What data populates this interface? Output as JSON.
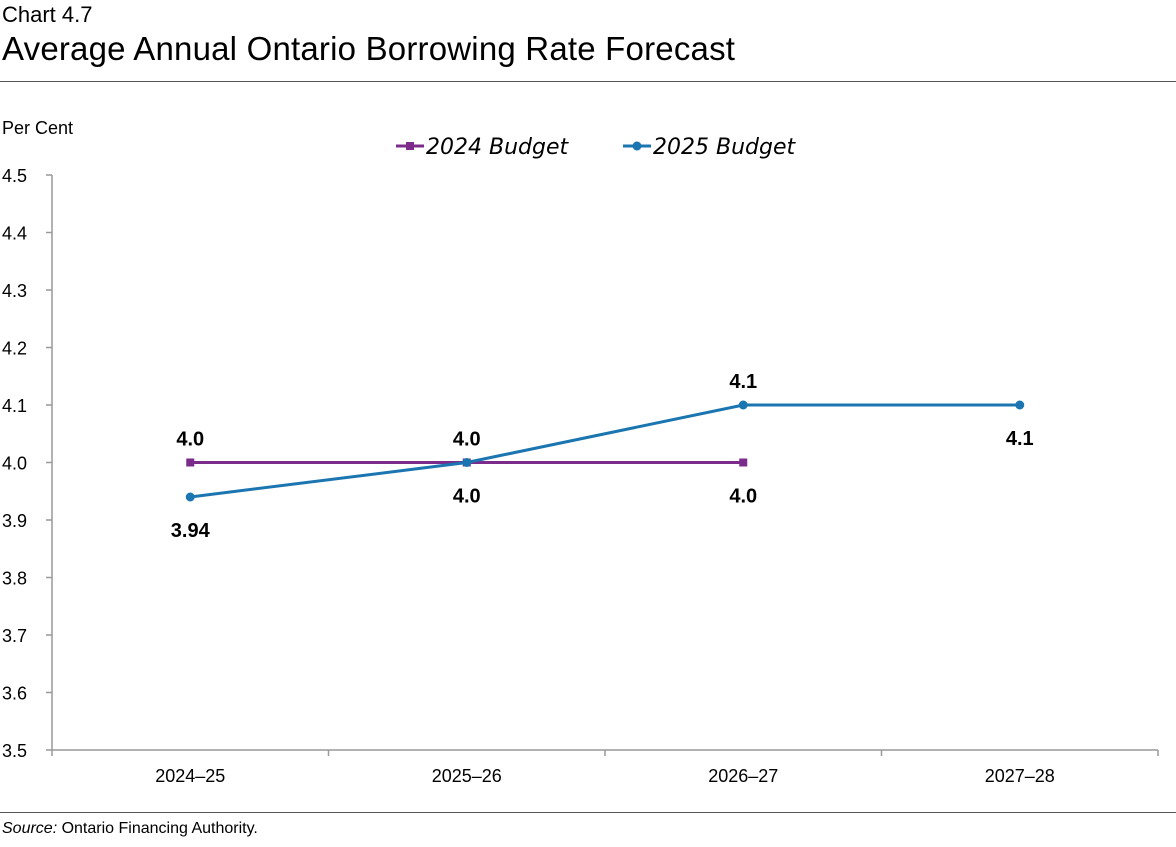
{
  "header": {
    "chart_number": "Chart 4.7",
    "title": "Average Annual Ontario Borrowing Rate Forecast"
  },
  "footer": {
    "source_label": "Source:",
    "source_text": " Ontario Financing Authority."
  },
  "chart_data": {
    "type": "line",
    "title": "Average Annual Ontario Borrowing Rate Forecast",
    "ylabel": "Per Cent",
    "xlabel": "",
    "ylim": [
      3.5,
      4.5
    ],
    "yticks": [
      "3.5",
      "3.6",
      "3.7",
      "3.8",
      "3.9",
      "4.0",
      "4.1",
      "4.2",
      "4.3",
      "4.4",
      "4.5"
    ],
    "categories": [
      "2024–25",
      "2025–26",
      "2026–27",
      "2027–28"
    ],
    "grid": false,
    "legend_position": "top-center",
    "series": [
      {
        "name": "2024 Budget",
        "color": "#7B2C8B",
        "marker": "square",
        "values": [
          4.0,
          4.0,
          4.0,
          null
        ],
        "labels": [
          "4.0",
          "4.0",
          "4.0",
          null
        ],
        "label_position": [
          "above",
          "above",
          "below",
          null
        ]
      },
      {
        "name": "2025 Budget",
        "color": "#1A75B0",
        "marker": "circle",
        "values": [
          3.94,
          4.0,
          4.1,
          4.1
        ],
        "labels": [
          "3.94",
          "4.0",
          "4.1",
          "4.1"
        ],
        "label_position": [
          "below",
          "below",
          "above",
          "below"
        ]
      }
    ]
  }
}
